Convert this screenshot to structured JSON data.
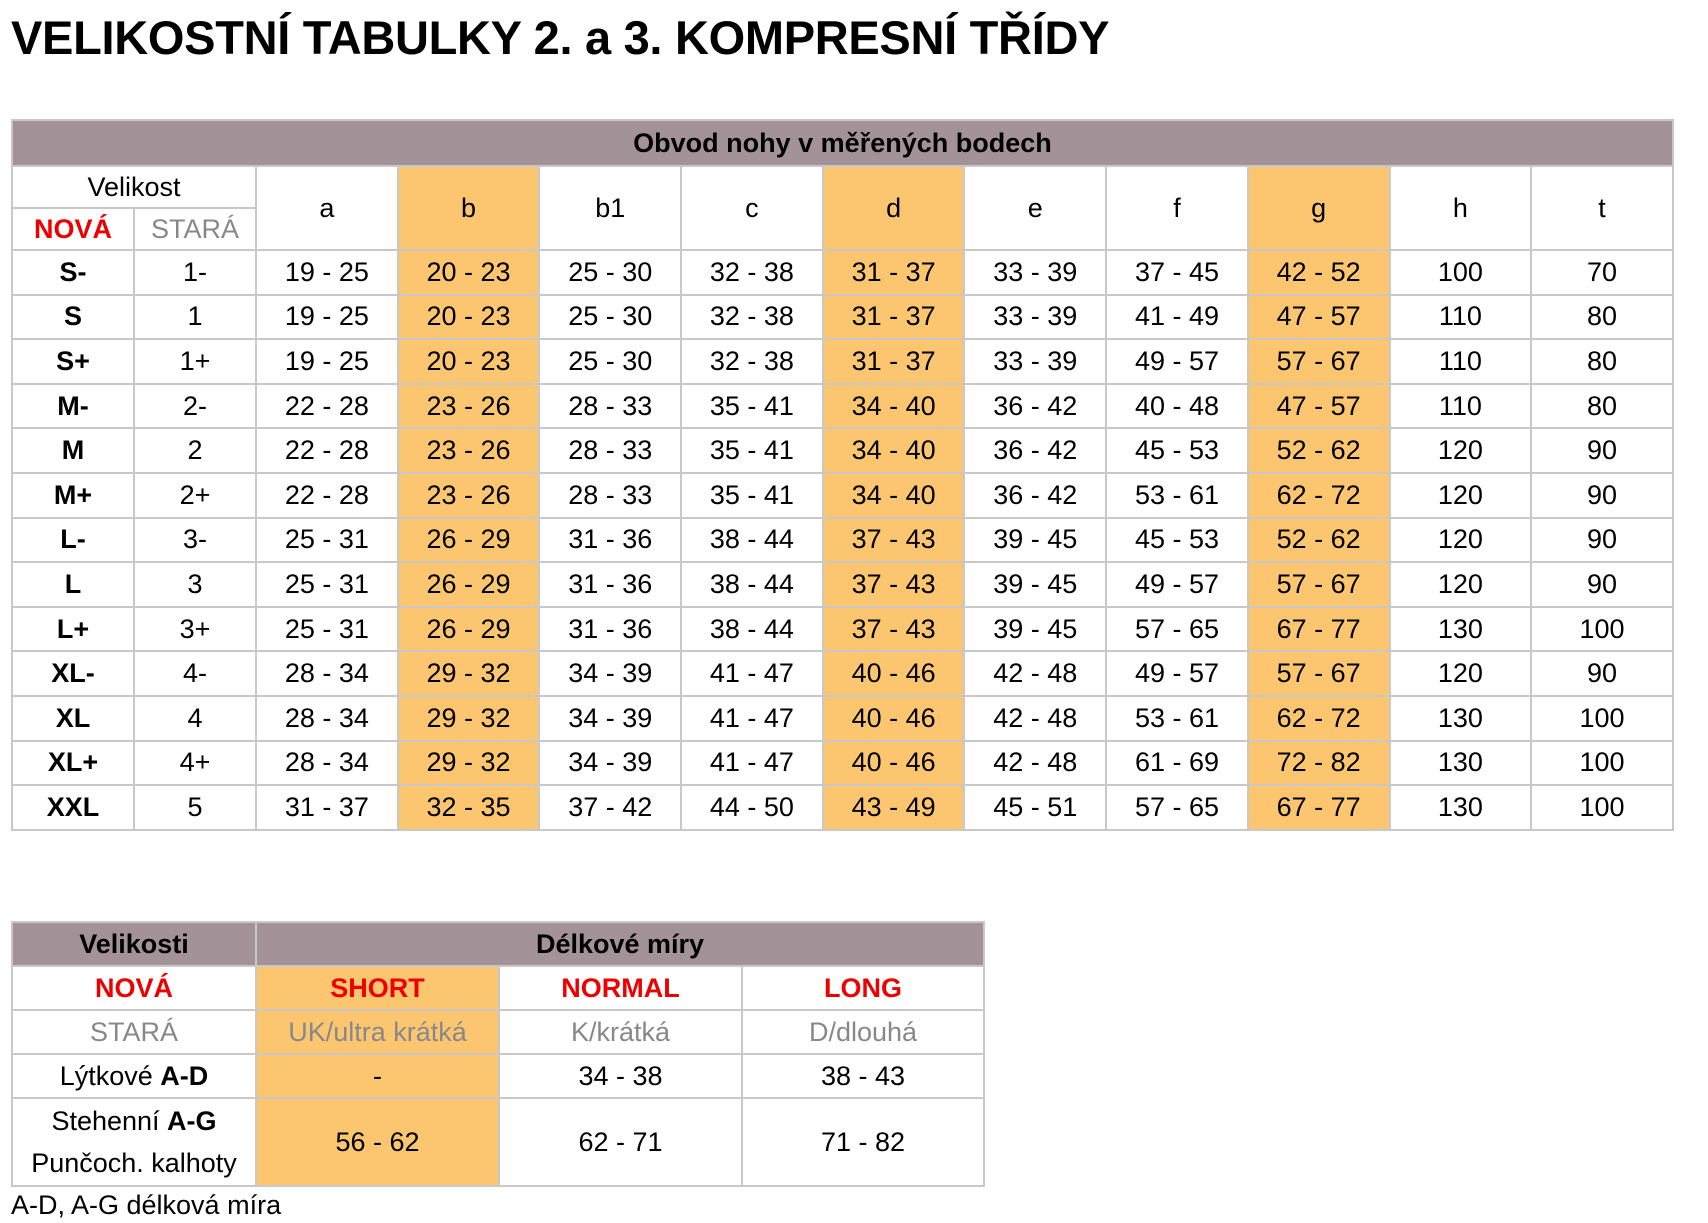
{
  "title": "VELIKOSTNÍ TABULKY 2. a 3. KOMPRESNÍ TŘÍDY",
  "circumference_table": {
    "caption": "Obvod nohy v měřených bodech",
    "size_label": "Velikost",
    "new_label": "NOVÁ",
    "old_label": "STARÁ",
    "columns": [
      "a",
      "b",
      "b1",
      "c",
      "d",
      "e",
      "f",
      "g",
      "h",
      "t"
    ],
    "highlighted_columns": [
      "b",
      "d",
      "g"
    ],
    "rows": [
      [
        "S-",
        "1-",
        "19 - 25",
        "20 - 23",
        "25 - 30",
        "32 - 38",
        "31 - 37",
        "33 - 39",
        "37 - 45",
        "42 - 52",
        "100",
        "70"
      ],
      [
        "S",
        "1",
        "19 - 25",
        "20 - 23",
        "25 - 30",
        "32 - 38",
        "31 - 37",
        "33 - 39",
        "41 - 49",
        "47 - 57",
        "110",
        "80"
      ],
      [
        "S+",
        "1+",
        "19 - 25",
        "20 - 23",
        "25 - 30",
        "32 - 38",
        "31 - 37",
        "33 - 39",
        "49 - 57",
        "57 - 67",
        "110",
        "80"
      ],
      [
        "M-",
        "2-",
        "22 - 28",
        "23 - 26",
        "28 - 33",
        "35 - 41",
        "34 - 40",
        "36 - 42",
        "40 - 48",
        "47 - 57",
        "110",
        "80"
      ],
      [
        "M",
        "2",
        "22 - 28",
        "23 - 26",
        "28 - 33",
        "35 - 41",
        "34 - 40",
        "36 - 42",
        "45 - 53",
        "52 - 62",
        "120",
        "90"
      ],
      [
        "M+",
        "2+",
        "22 - 28",
        "23 - 26",
        "28 - 33",
        "35 - 41",
        "34 - 40",
        "36 - 42",
        "53 - 61",
        "62 - 72",
        "120",
        "90"
      ],
      [
        "L-",
        "3-",
        "25 - 31",
        "26 - 29",
        "31 - 36",
        "38 - 44",
        "37 - 43",
        "39 - 45",
        "45 - 53",
        "52 - 62",
        "120",
        "90"
      ],
      [
        "L",
        "3",
        "25 - 31",
        "26 - 29",
        "31 - 36",
        "38 - 44",
        "37 - 43",
        "39 - 45",
        "49 - 57",
        "57 - 67",
        "120",
        "90"
      ],
      [
        "L+",
        "3+",
        "25 - 31",
        "26 - 29",
        "31 - 36",
        "38 - 44",
        "37 - 43",
        "39 - 45",
        "57 - 65",
        "67 - 77",
        "130",
        "100"
      ],
      [
        "XL-",
        "4-",
        "28 - 34",
        "29 - 32",
        "34 - 39",
        "41 - 47",
        "40 - 46",
        "42 - 48",
        "49 - 57",
        "57 - 67",
        "120",
        "90"
      ],
      [
        "XL",
        "4",
        "28 - 34",
        "29 - 32",
        "34 - 39",
        "41 - 47",
        "40 - 46",
        "42 - 48",
        "53 - 61",
        "62 - 72",
        "130",
        "100"
      ],
      [
        "XL+",
        "4+",
        "28 - 34",
        "29 - 32",
        "34 - 39",
        "41 - 47",
        "40 - 46",
        "42 - 48",
        "61 - 69",
        "72 - 82",
        "130",
        "100"
      ],
      [
        "XXL",
        "5",
        "31 - 37",
        "32 - 35",
        "37 - 42",
        "44 - 50",
        "43 - 49",
        "45 - 51",
        "57 - 65",
        "67 - 77",
        "130",
        "100"
      ]
    ]
  },
  "length_table": {
    "sizes_header": "Velikosti",
    "lengths_header": "Délkové míry",
    "new_label": "NOVÁ",
    "new_values": [
      "SHORT",
      "NORMAL",
      "LONG"
    ],
    "old_label": "STARÁ",
    "old_values": [
      "UK/ultra krátká",
      "K/krátká",
      "D/dlouhá"
    ],
    "calf": {
      "label": "Lýtkové ",
      "label_bold": "A-D",
      "values": [
        "-",
        "34 - 38",
        "38 - 43"
      ]
    },
    "thigh": {
      "label": "Stehenní ",
      "label_bold": "A-G",
      "label2": "Punčoch. kalhoty",
      "values": [
        "56 - 62",
        "62 - 71",
        "71 - 82"
      ]
    }
  },
  "footnote": "A-D, A-G délková míra",
  "colors": {
    "header_bg": "#a39399",
    "highlight_bg": "#fcc671",
    "new_red": "#e00000",
    "old_gray": "#888888"
  }
}
